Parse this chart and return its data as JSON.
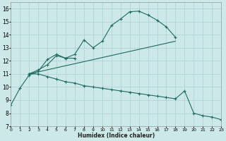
{
  "xlabel": "Humidex (Indice chaleur)",
  "xlim": [
    0,
    23
  ],
  "ylim": [
    7,
    16.5
  ],
  "xticks": [
    0,
    1,
    2,
    3,
    4,
    5,
    6,
    7,
    8,
    9,
    10,
    11,
    12,
    13,
    14,
    15,
    16,
    17,
    18,
    19,
    20,
    21,
    22,
    23
  ],
  "yticks": [
    7,
    8,
    9,
    10,
    11,
    12,
    13,
    14,
    15,
    16
  ],
  "bg_color": "#cce8e8",
  "grid_color": "#aacfcf",
  "line_color": "#1e6b5e",
  "curve1_x": [
    0,
    1,
    2,
    3,
    4,
    5,
    6,
    7
  ],
  "curve1_y": [
    8.6,
    9.9,
    10.9,
    11.2,
    12.1,
    12.5,
    12.2,
    12.2
  ],
  "curve2_x": [
    2,
    3,
    4,
    5,
    6,
    7,
    8,
    9,
    10,
    11,
    12,
    13,
    14,
    15,
    16,
    17,
    18
  ],
  "curve2_y": [
    11.0,
    11.3,
    11.7,
    12.4,
    12.2,
    12.5,
    13.6,
    13.0,
    13.5,
    14.7,
    15.2,
    15.75,
    15.8,
    15.5,
    15.1,
    14.6,
    13.8
  ],
  "curve3_x": [
    2,
    3,
    4,
    5,
    6,
    7,
    8,
    9,
    10,
    11,
    12,
    13,
    14,
    15,
    16,
    17,
    18,
    19,
    20,
    21,
    22,
    23
  ],
  "curve3_y": [
    11.0,
    11.0,
    10.8,
    10.6,
    10.4,
    10.3,
    10.1,
    10.0,
    9.9,
    9.8,
    9.7,
    9.6,
    9.5,
    9.4,
    9.3,
    9.2,
    9.1,
    9.7,
    8.0,
    7.8,
    7.7,
    7.5
  ],
  "curve4_x": [
    2,
    18
  ],
  "curve4_y": [
    11.0,
    13.5
  ]
}
